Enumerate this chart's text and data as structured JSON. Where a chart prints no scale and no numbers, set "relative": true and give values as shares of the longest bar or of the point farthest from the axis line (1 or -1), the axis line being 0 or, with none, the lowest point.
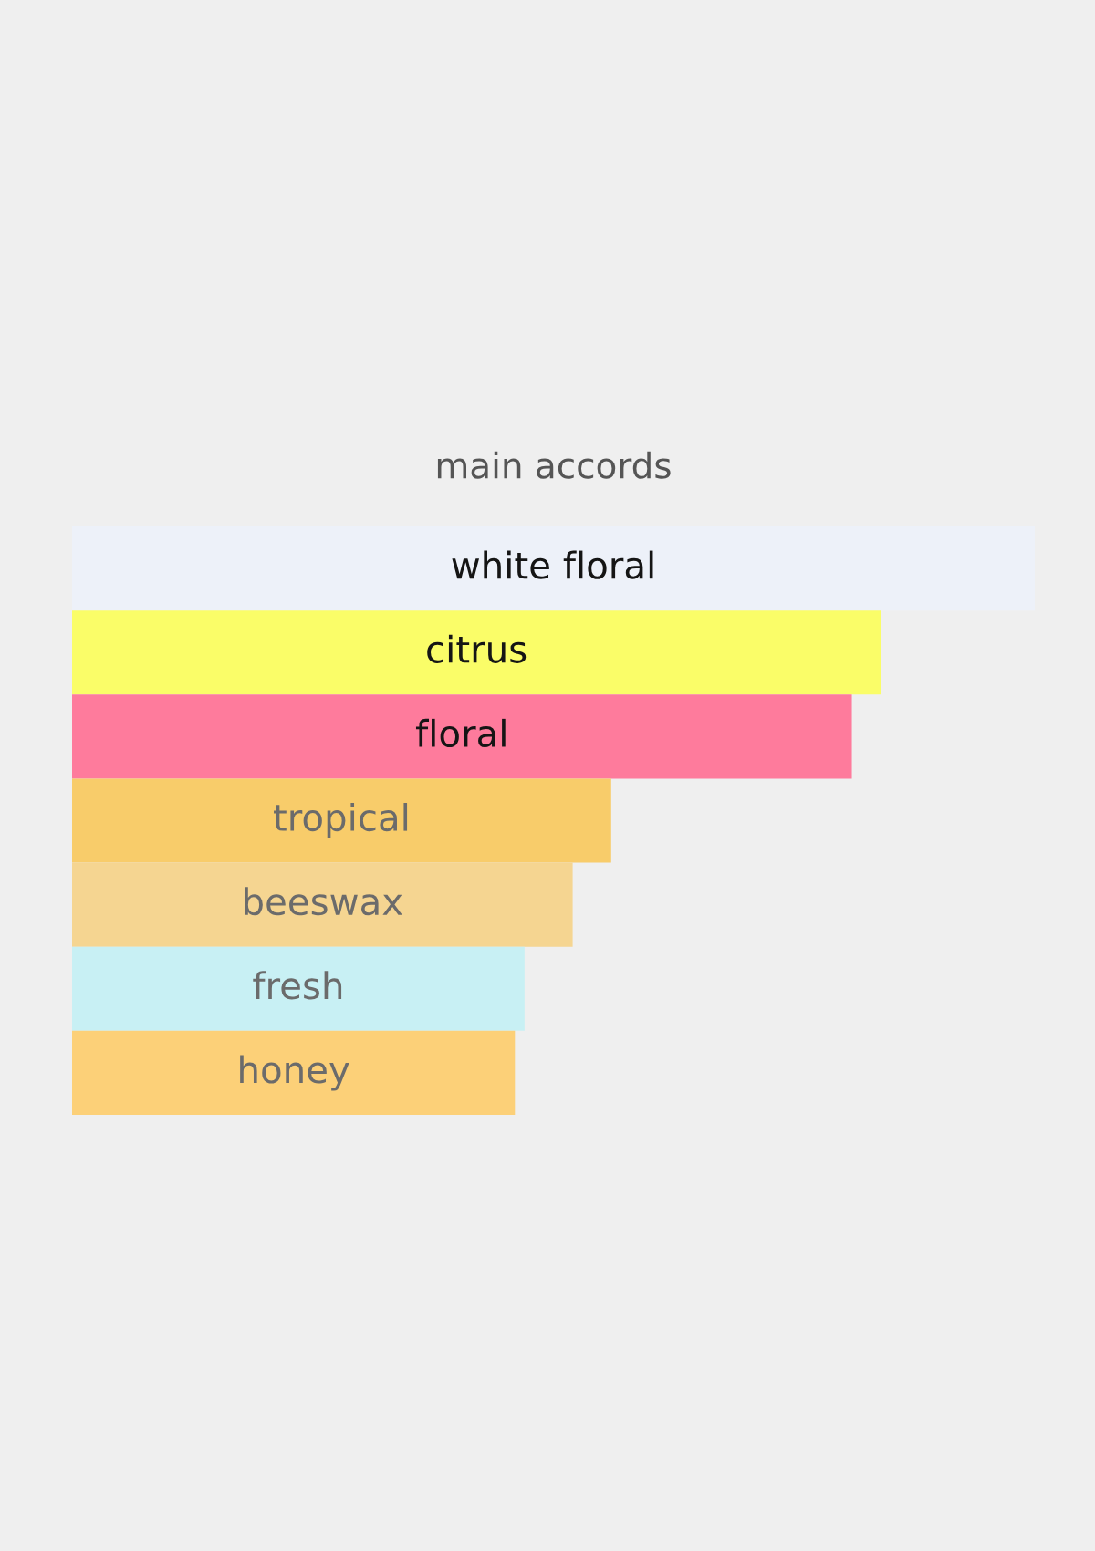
{
  "chart_data": {
    "type": "bar",
    "orientation": "horizontal",
    "relative": true,
    "title": "main accords",
    "categories": [
      "white floral",
      "citrus",
      "floral",
      "tropical",
      "beeswax",
      "fresh",
      "honey"
    ],
    "values": [
      1,
      0.84,
      0.81,
      0.56,
      0.52,
      0.47,
      0.46
    ],
    "colors": [
      "#edf1f9",
      "#fafd68",
      "#fe7b9c",
      "#f8cc6a",
      "#f5d591",
      "#c8f0f4",
      "#fcd078"
    ]
  }
}
